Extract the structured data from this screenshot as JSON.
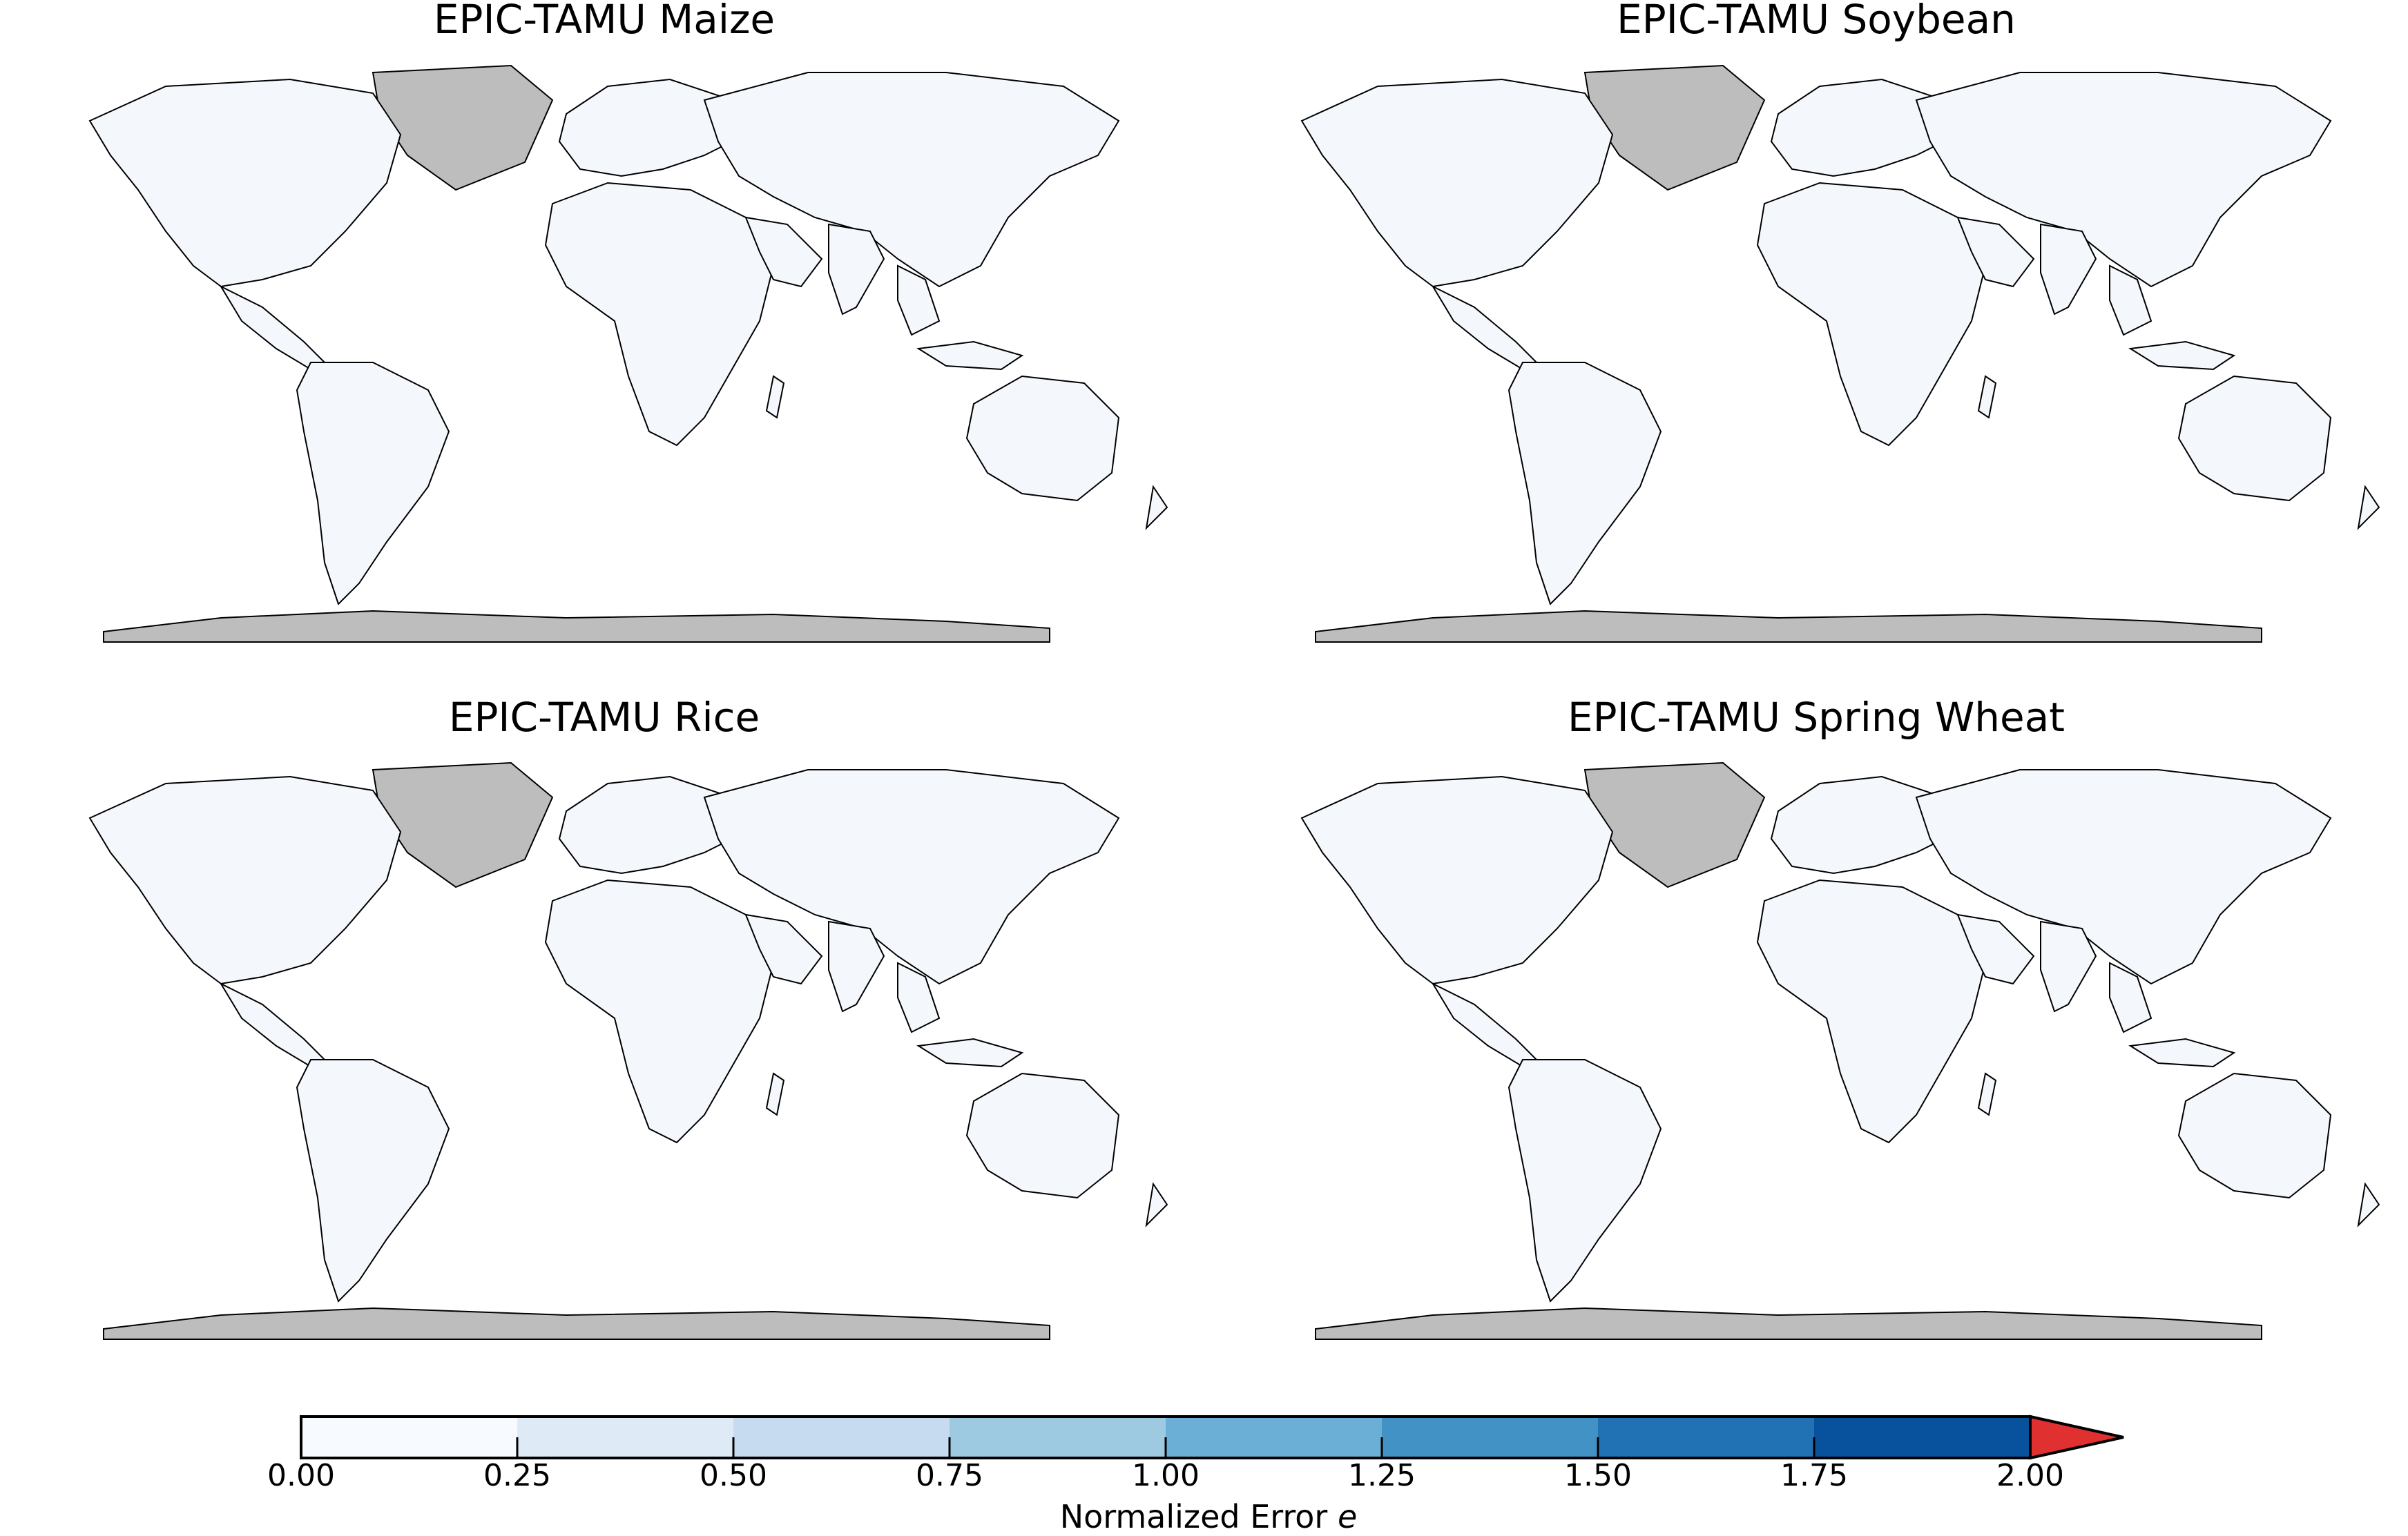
{
  "panels": [
    {
      "title": "EPIC-TAMU Maize"
    },
    {
      "title": "EPIC-TAMU Soybean"
    },
    {
      "title": "EPIC-TAMU Rice"
    },
    {
      "title": "EPIC-TAMU Spring Wheat"
    }
  ],
  "colorbar": {
    "title": "Normalized Error",
    "title_symbol": "e",
    "ticks": [
      "0.00",
      "0.25",
      "0.50",
      "0.75",
      "1.00",
      "1.25",
      "1.50",
      "1.75",
      "2.00"
    ],
    "colors": [
      "#f7fbff",
      "#deebf7",
      "#c6dbef",
      "#9ecae1",
      "#6baed6",
      "#4292c6",
      "#2171b5",
      "#08519c"
    ],
    "extend_color": "#e03030",
    "no_data_color": "#bdbdbd"
  }
}
